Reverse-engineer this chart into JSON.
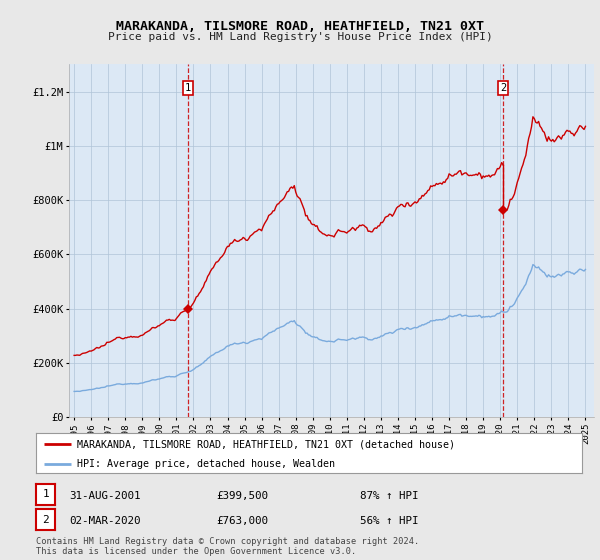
{
  "title": "MARAKANDA, TILSMORE ROAD, HEATHFIELD, TN21 0XT",
  "subtitle": "Price paid vs. HM Land Registry's House Price Index (HPI)",
  "red_label": "MARAKANDA, TILSMORE ROAD, HEATHFIELD, TN21 0XT (detached house)",
  "blue_label": "HPI: Average price, detached house, Wealden",
  "annotation1": {
    "num": "1",
    "date": "31-AUG-2001",
    "price": "£399,500",
    "change": "87% ↑ HPI"
  },
  "annotation2": {
    "num": "2",
    "date": "02-MAR-2020",
    "price": "£763,000",
    "change": "56% ↑ HPI"
  },
  "footnote1": "Contains HM Land Registry data © Crown copyright and database right 2024.",
  "footnote2": "This data is licensed under the Open Government Licence v3.0.",
  "ylim": [
    0,
    1300000
  ],
  "yticks": [
    0,
    200000,
    400000,
    600000,
    800000,
    1000000,
    1200000
  ],
  "ytick_labels": [
    "£0",
    "£200K",
    "£400K",
    "£600K",
    "£800K",
    "£1M",
    "£1.2M"
  ],
  "background_color": "#e8e8e8",
  "plot_bg_color": "#dce8f5",
  "red_color": "#cc0000",
  "blue_color": "#7aaadd",
  "sale1_x": 2001.67,
  "sale1_y": 399500,
  "sale2_x": 2020.17,
  "sale2_y": 763000,
  "vline1_x": 2001.67,
  "vline2_x": 2020.17,
  "xtick_years": [
    1995,
    1996,
    1997,
    1998,
    1999,
    2000,
    2001,
    2002,
    2003,
    2004,
    2005,
    2006,
    2007,
    2008,
    2009,
    2010,
    2011,
    2012,
    2013,
    2014,
    2015,
    2016,
    2017,
    2018,
    2019,
    2020,
    2021,
    2022,
    2023,
    2024,
    2025
  ]
}
